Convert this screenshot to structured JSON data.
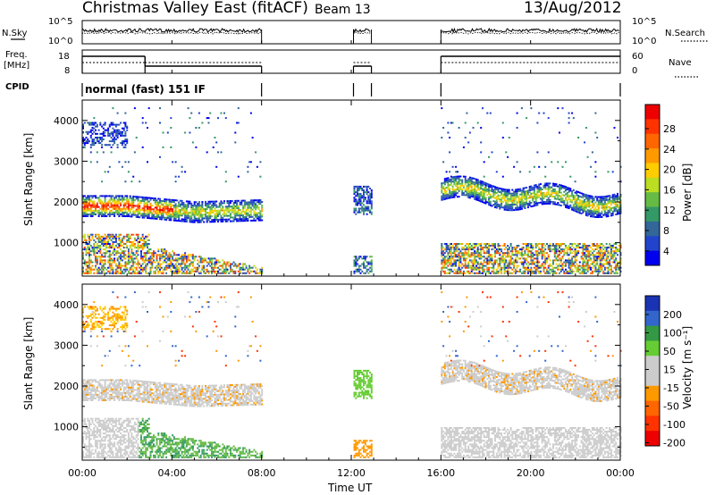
{
  "header": {
    "title": "Christmas Valley East (fitACF)",
    "beam": "Beam 13",
    "date": "13/Aug/2012"
  },
  "noise_panel": {
    "left_label": "N.Sky",
    "right_label": "N.Search",
    "left_ticks": [
      "10^5",
      "10^0"
    ],
    "right_ticks": [
      "10^5",
      "10^0"
    ]
  },
  "freq_panel": {
    "left_label_1": "Freq.",
    "left_label_2": "[MHz]",
    "right_label": "Nave",
    "left_ticks": [
      "18",
      "8"
    ],
    "right_ticks": [
      "60",
      "0"
    ]
  },
  "cpid": {
    "label": "CPID",
    "text": "normal (fast) 151 IF"
  },
  "chart_data": [
    {
      "type": "heatmap",
      "name": "power",
      "ylabel": "Slant Range [km]",
      "ylim": [
        180,
        4500
      ],
      "yticks": [
        "1000",
        "2000",
        "3000",
        "4000"
      ],
      "xlim": [
        0,
        24
      ],
      "colorbar": {
        "label": "Power [dB]",
        "ticks": [
          "28",
          "24",
          "20",
          "16",
          "12",
          "8",
          "4"
        ],
        "colors": [
          "#ee0000",
          "#ff3300",
          "#ff6600",
          "#ff9900",
          "#ffcc00",
          "#bbdd22",
          "#66bb44",
          "#339966",
          "#336699",
          "#2244cc",
          "#0000ee"
        ]
      },
      "data_windows_hours": [
        [
          0,
          8
        ],
        [
          12.1,
          12.9
        ],
        [
          16,
          24
        ]
      ]
    },
    {
      "type": "heatmap",
      "name": "velocity",
      "ylabel": "Slant Range [km]",
      "ylim": [
        180,
        4500
      ],
      "yticks": [
        "1000",
        "2000",
        "3000",
        "4000"
      ],
      "xlim": [
        0,
        24
      ],
      "colorbar": {
        "label": "Velocity [m s⁻¹]",
        "ticks": [
          "200",
          "100",
          "50",
          "15",
          "-15",
          "-50",
          "-100",
          "-200"
        ],
        "colors": [
          "#1a33b3",
          "#3366cc",
          "#339944",
          "#66cc33",
          "#cccccc",
          "#cccccc",
          "#ff9900",
          "#ff6600",
          "#ff3300",
          "#ee0000"
        ]
      }
    }
  ],
  "x_axis": {
    "ticks": [
      "00:00",
      "04:00",
      "08:00",
      "12:00",
      "16:00",
      "20:00",
      "00:00"
    ],
    "label": "Time UT"
  }
}
